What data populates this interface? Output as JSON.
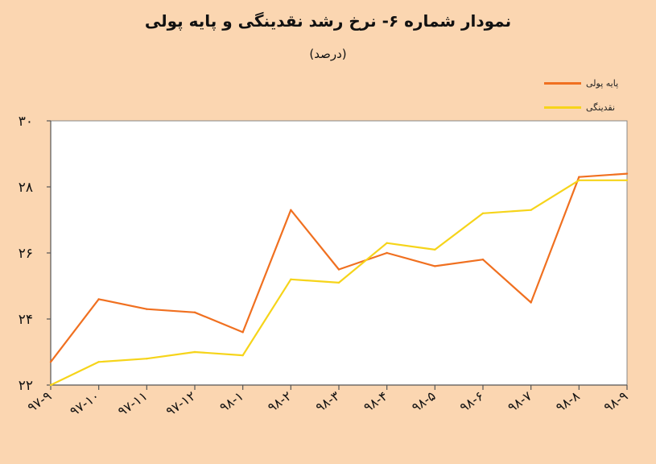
{
  "title": "نمودار شماره ۶- نرخ رشد نقدینگی و پایه پولی",
  "subtitle": "(درصد)",
  "legend": [
    {
      "name": "پایه پولی",
      "color": "#f07020"
    },
    {
      "name": "نقدینگی",
      "color": "#f6d41a"
    }
  ],
  "chart_data": {
    "type": "line",
    "ylim": [
      22,
      30
    ],
    "yticks": [
      "۲۲",
      "۲۴",
      "۲۶",
      "۲۸",
      "۳۰"
    ],
    "ytick_values": [
      22,
      24,
      26,
      28,
      30
    ],
    "categories": [
      "۹۷-۹",
      "۹۷-۱۰",
      "۹۷-۱۱",
      "۹۷-۱۲",
      "۹۸-۱",
      "۹۸-۲",
      "۹۸-۳",
      "۹۸-۴",
      "۹۸-۵",
      "۹۸-۶",
      "۹۸-۷",
      "۹۸-۸",
      "۹۸-۹"
    ],
    "series": [
      {
        "name": "پایه پولی",
        "color": "#f07020",
        "values": [
          22.7,
          24.6,
          24.3,
          24.2,
          23.6,
          27.3,
          25.5,
          26.0,
          25.6,
          25.8,
          24.5,
          28.3,
          28.4
        ]
      },
      {
        "name": "نقدینگی",
        "color": "#f6d41a",
        "values": [
          22.0,
          22.7,
          22.8,
          23.0,
          22.9,
          25.2,
          25.1,
          26.3,
          26.1,
          27.2,
          27.3,
          28.2,
          28.2
        ]
      }
    ],
    "grid": false,
    "legend_position": "top-right"
  }
}
